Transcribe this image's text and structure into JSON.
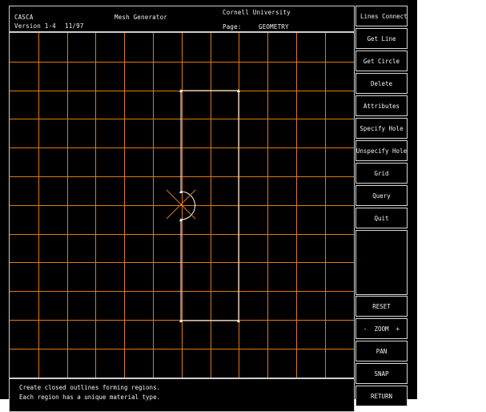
{
  "header": {
    "app_name": "CASCA",
    "version": "Version 1-4",
    "date": "11/97",
    "title": "Mesh Generator",
    "institution": "Cornell University",
    "page_label": "Page:",
    "page_value": "GEOMETRY"
  },
  "menu": {
    "buttons": [
      "Lines Connected",
      "Get Line",
      "Get Circle",
      "Delete",
      "Attributes",
      "Specify Hole",
      "Unspecify Hole",
      "Grid",
      "Query",
      "Quit"
    ],
    "view_buttons": [
      "RESET",
      "-  ZOOM  +",
      "PAN",
      "SNAP",
      "RETURN"
    ]
  },
  "messages": [
    "Create closed outlines forming regions.",
    "Each region has a unique material type."
  ],
  "colors": {
    "background": "#000000",
    "grid": "#e07a10",
    "outline": "#ffffff",
    "border": "#cfcfcf",
    "text": "#f2f2f2"
  }
}
